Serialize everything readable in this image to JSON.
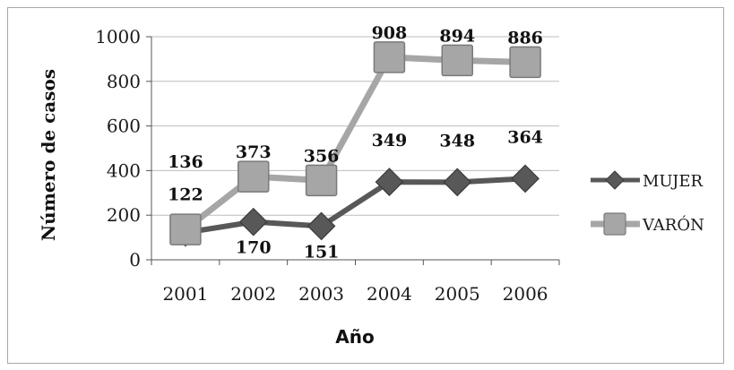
{
  "chart_data": {
    "type": "line",
    "title": "",
    "xlabel": "Año",
    "ylabel": "Número de casos",
    "ylim": [
      0,
      1000
    ],
    "yticks": [
      0,
      200,
      400,
      600,
      800,
      1000
    ],
    "categories": [
      "2001",
      "2002",
      "2003",
      "2004",
      "2005",
      "2006"
    ],
    "grid": "horizontal",
    "legend": "right",
    "series": [
      {
        "name": "MUJER",
        "marker": "diamond",
        "color": "#585858",
        "values": [
          122,
          170,
          151,
          349,
          348,
          364
        ]
      },
      {
        "name": "VARÓN",
        "marker": "square",
        "color": "#a6a6a6",
        "values": [
          136,
          373,
          356,
          908,
          894,
          886
        ]
      }
    ]
  }
}
